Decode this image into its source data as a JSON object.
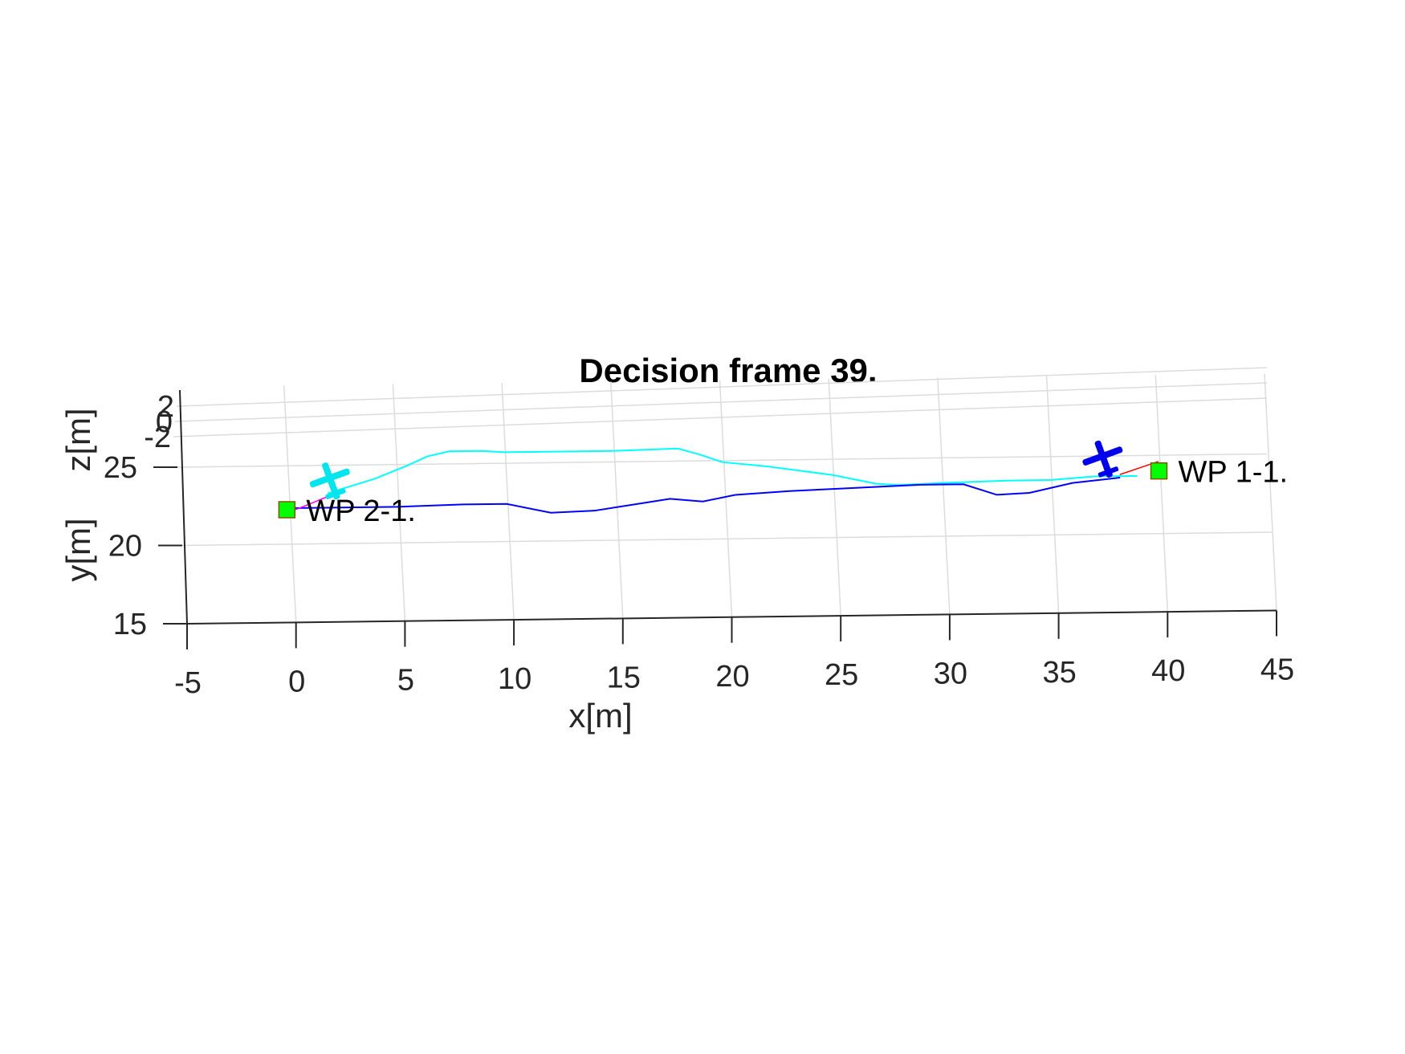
{
  "chart_data": {
    "type": "line",
    "title": "Decision frame 39.",
    "xlabel": "x[m]",
    "ylabel": "y[m]",
    "zlabel": "z[m]",
    "xlim": [
      -5,
      45
    ],
    "ylim": [
      15,
      25
    ],
    "zlim": [
      -2,
      2
    ],
    "x_ticks": [
      "-5",
      "0",
      "5",
      "10",
      "15",
      "20",
      "25",
      "30",
      "35",
      "40",
      "45"
    ],
    "y_ticks": [
      "15",
      "20",
      "25"
    ],
    "z_ticks": [
      "-2",
      "0",
      "2"
    ],
    "grid": true,
    "view": "3d-oblique",
    "series": [
      {
        "color": "#00ffff",
        "points": [
          [
            1.8,
            23.2
          ],
          [
            2.5,
            23.5
          ],
          [
            4,
            24.1
          ],
          [
            5.5,
            24.9
          ],
          [
            6.5,
            25.5
          ],
          [
            7.5,
            25.8
          ],
          [
            9,
            25.8
          ],
          [
            10,
            25.7
          ],
          [
            12,
            25.7
          ],
          [
            15,
            25.7
          ],
          [
            18,
            25.8
          ],
          [
            19,
            25.4
          ],
          [
            20,
            24.9
          ],
          [
            22,
            24.6
          ],
          [
            24,
            24.2
          ],
          [
            25,
            24.0
          ],
          [
            27,
            23.4
          ],
          [
            28,
            23.3
          ],
          [
            30,
            23.4
          ],
          [
            33,
            23.5
          ],
          [
            35,
            23.5
          ],
          [
            37,
            23.7
          ],
          [
            39,
            23.7
          ]
        ]
      },
      {
        "color": "#0000ff",
        "points": [
          [
            0.3,
            22.3
          ],
          [
            2,
            22.3
          ],
          [
            5,
            22.3
          ],
          [
            8,
            22.4
          ],
          [
            10,
            22.4
          ],
          [
            12,
            21.8
          ],
          [
            14,
            21.9
          ],
          [
            16,
            22.3
          ],
          [
            17.5,
            22.6
          ],
          [
            19,
            22.4
          ],
          [
            20.5,
            22.8
          ],
          [
            23,
            23.0
          ],
          [
            25,
            23.1
          ],
          [
            27,
            23.2
          ],
          [
            29,
            23.3
          ],
          [
            31,
            23.3
          ],
          [
            32.5,
            22.6
          ],
          [
            34,
            22.7
          ],
          [
            36,
            23.3
          ],
          [
            38.2,
            23.6
          ]
        ]
      }
    ],
    "waypoints": [
      {
        "label": "WP 1-1.",
        "x": 40,
        "y": 24.0,
        "color": "#00ff00"
      },
      {
        "label": "WP 2-1.",
        "x": -0.1,
        "y": 22.2,
        "color": "#00ff00"
      }
    ],
    "aircraft": [
      {
        "name": "airplane-cyan",
        "color": "#00e5ee",
        "x": 2.0,
        "y": 24.0
      },
      {
        "name": "airplane-blue",
        "color": "#0000ee",
        "x": 37.5,
        "y": 24.8
      }
    ],
    "guide_lines": [
      {
        "color": "#ff0000",
        "from": [
          38.2,
          23.8
        ],
        "to": [
          40,
          24.6
        ]
      },
      {
        "color": "#ff00ff",
        "from": [
          0.3,
          22.2
        ],
        "to": [
          1.8,
          23.0
        ]
      }
    ]
  }
}
